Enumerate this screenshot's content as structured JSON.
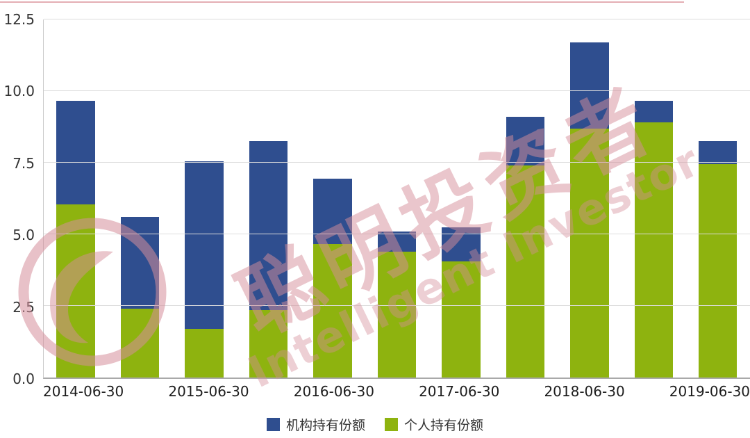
{
  "watermark": {
    "text_cn": "聪明投资者",
    "text_en": "Intelligent Investor",
    "color": "#D68E9A"
  },
  "chart_data": {
    "type": "bar",
    "stacked": true,
    "title": "",
    "xlabel": "",
    "ylabel": "",
    "grid": "horizontal",
    "legend_position": "bottom-center",
    "categories": [
      "2014-06-30",
      "",
      "2015-06-30",
      "",
      "2016-06-30",
      "",
      "2017-06-30",
      "",
      "2018-06-30",
      "",
      "2019-06-30"
    ],
    "series": [
      {
        "name": "机构持有份额",
        "color": "#2F4E8F",
        "values": [
          3.6,
          3.2,
          5.85,
          5.9,
          2.3,
          0.7,
          1.2,
          1.7,
          3.0,
          0.75,
          0.8
        ]
      },
      {
        "name": "个人持有份额",
        "color": "#8EB30F",
        "values": [
          6.05,
          2.4,
          1.7,
          2.35,
          4.65,
          4.4,
          4.05,
          7.4,
          8.7,
          8.9,
          7.45
        ]
      }
    ],
    "ylim": [
      0,
      12.5
    ],
    "yticks": [
      0,
      2.5,
      5,
      7.5,
      10,
      12.5
    ],
    "ytick_labels": [
      "0.0",
      "2.5",
      "5.0",
      "7.5",
      "10.0",
      "12.5"
    ]
  }
}
